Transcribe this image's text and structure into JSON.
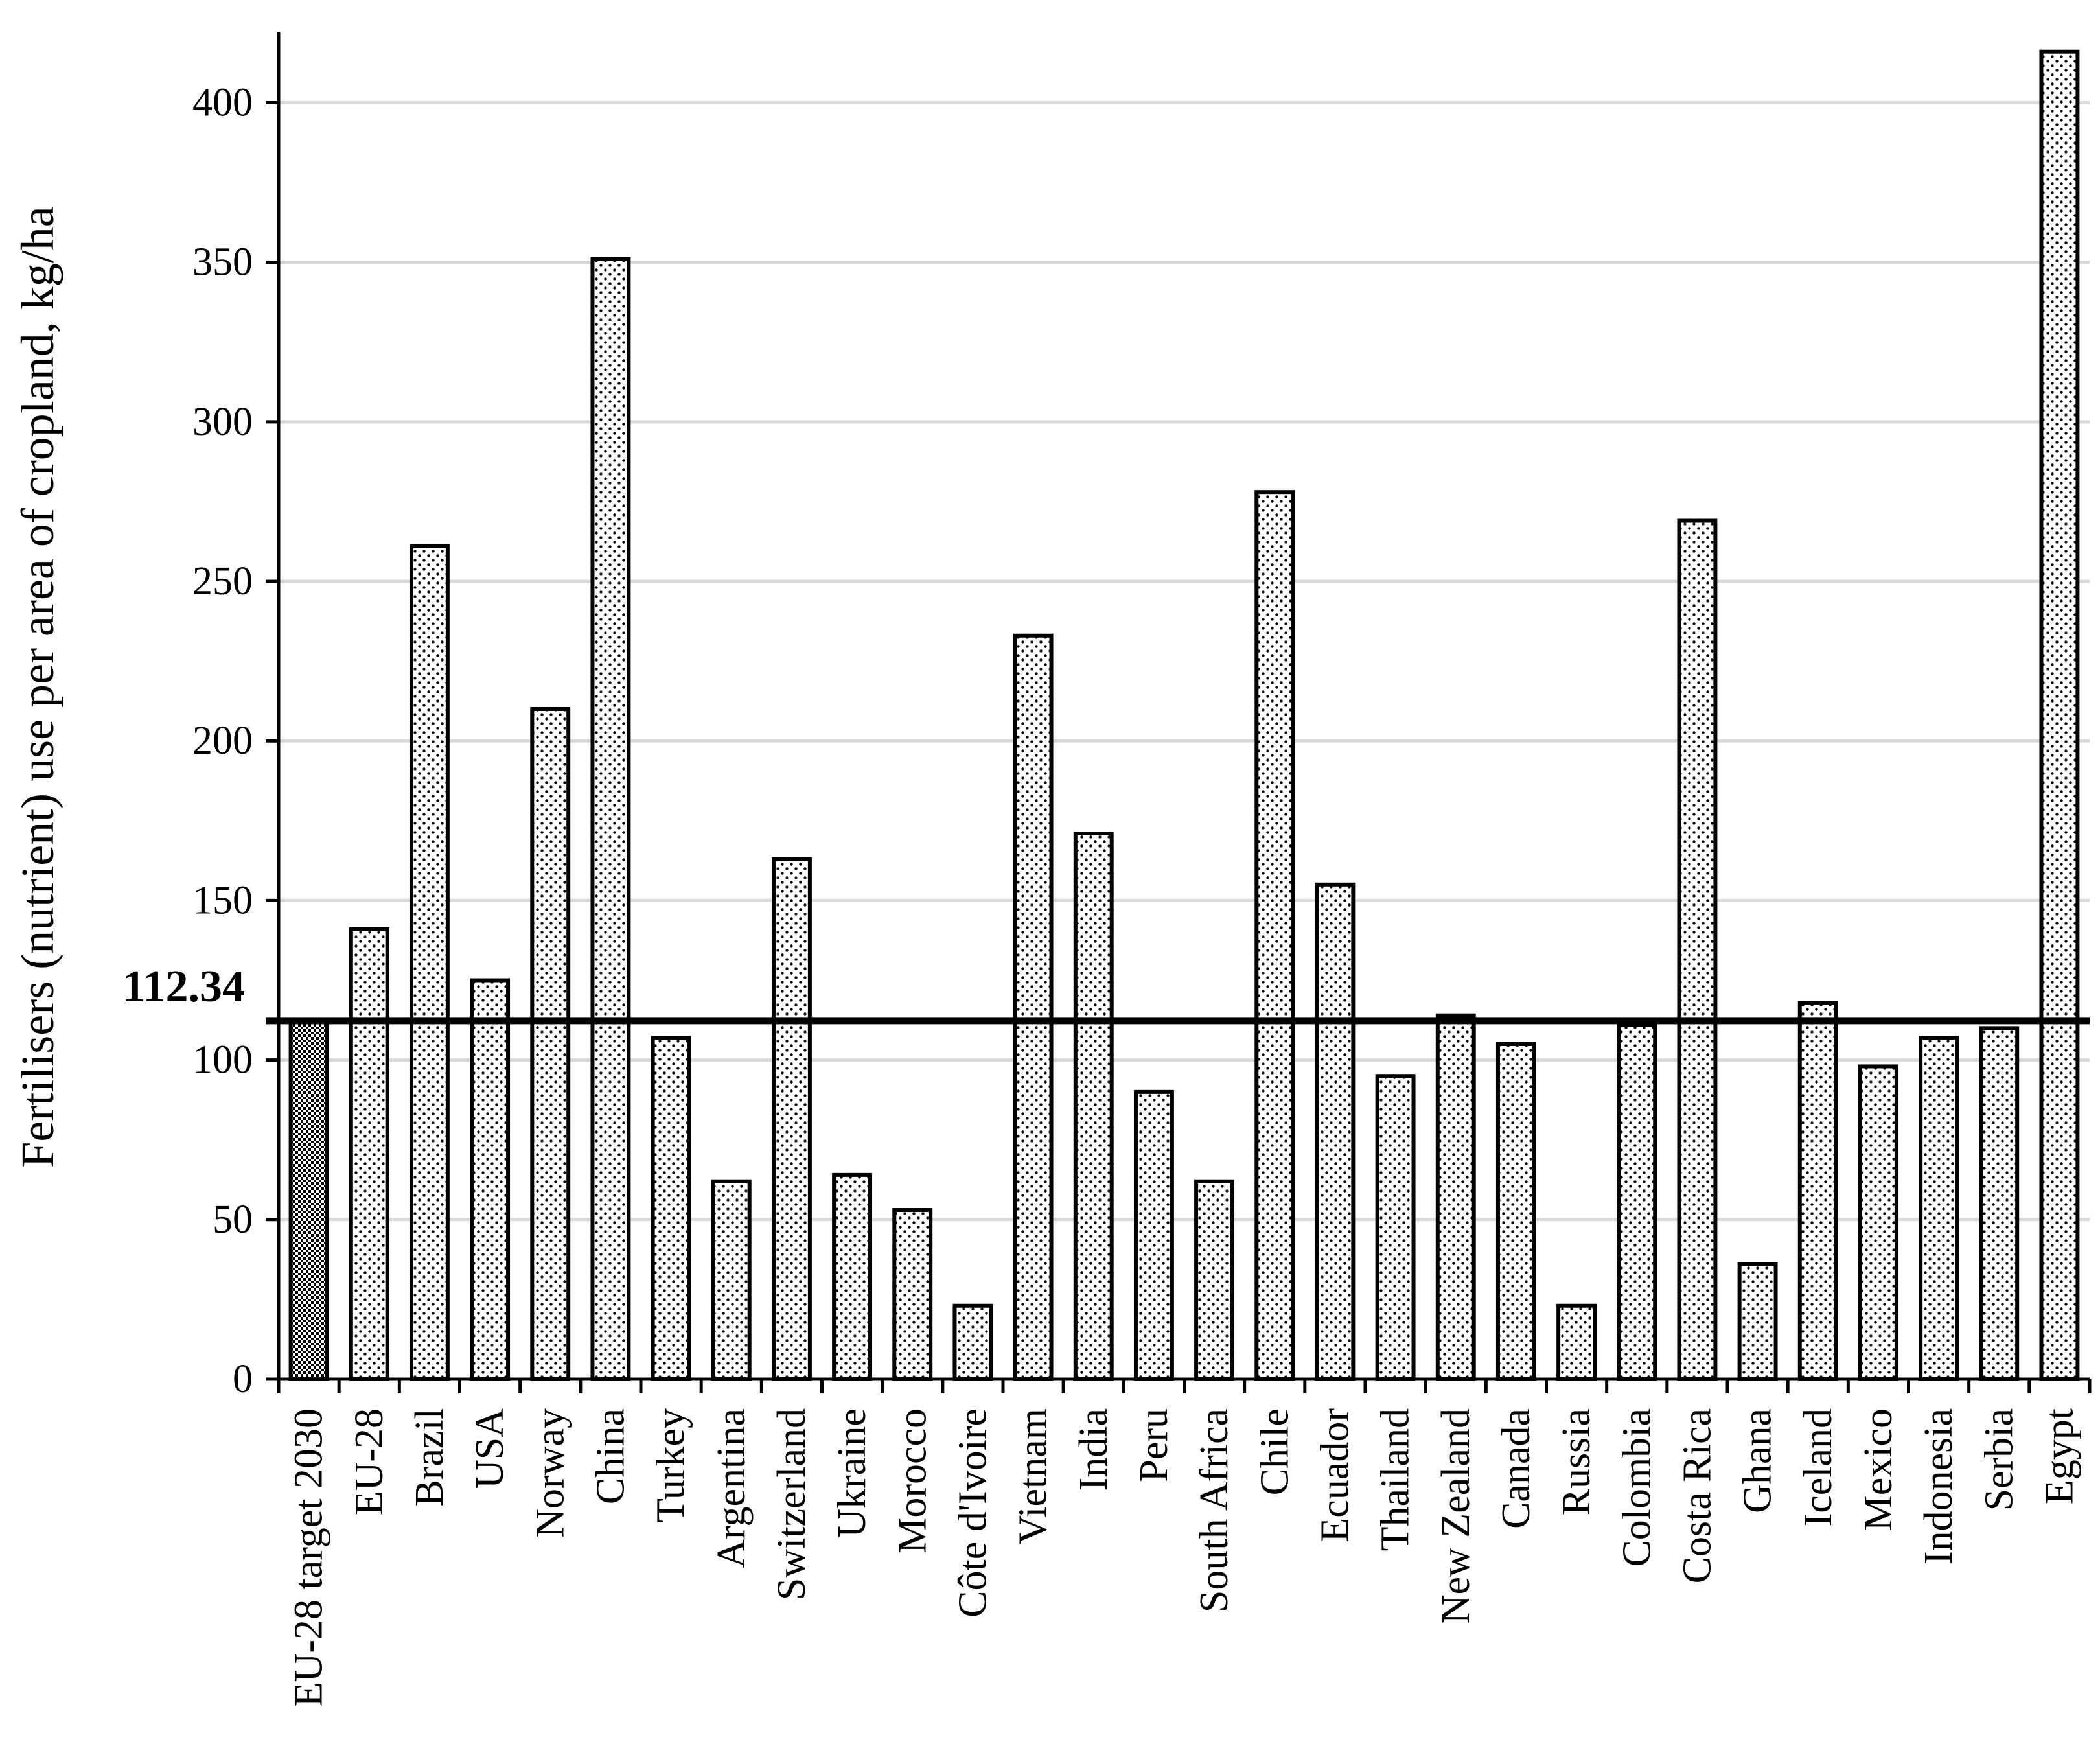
{
  "chart_data": {
    "type": "bar",
    "title": "",
    "xlabel": "",
    "ylabel": "Fertilisers (nutrient) use per area of cropland, kg/ha",
    "ylim": [
      0,
      420
    ],
    "yticks": [
      0,
      50,
      100,
      150,
      200,
      250,
      300,
      350,
      400
    ],
    "grid": "horizontal",
    "legend": "none",
    "reference_line": {
      "value": 112.34,
      "label": "112.34"
    },
    "categories": [
      "EU-28 target 2030",
      "EU-28",
      "Brazil",
      "USA",
      "Norway",
      "China",
      "Turkey",
      "Argentina",
      "Switzerland",
      "Ukraine",
      "Morocco",
      "Côte d'Ivoire",
      "Vietnam",
      "India",
      "Peru",
      "South Africa",
      "Chile",
      "Ecuador",
      "Thailand",
      "New Zealand",
      "Canada",
      "Russia",
      "Colombia",
      "Costa Rica",
      "Ghana",
      "Iceland",
      "Mexico",
      "Indonesia",
      "Serbia",
      "Egypt"
    ],
    "values": [
      112.34,
      141,
      261,
      125,
      210,
      351,
      107,
      62,
      163,
      64,
      53,
      23,
      233,
      171,
      90,
      62,
      278,
      155,
      95,
      114,
      105,
      23,
      111,
      269,
      36,
      118,
      98,
      107,
      110,
      416
    ],
    "colors": {
      "bar_fill": "#ffffff",
      "bar_pattern": "dotted",
      "highlight_pattern": "checkered",
      "stroke": "#000000",
      "grid": "#d9d9d9"
    }
  }
}
